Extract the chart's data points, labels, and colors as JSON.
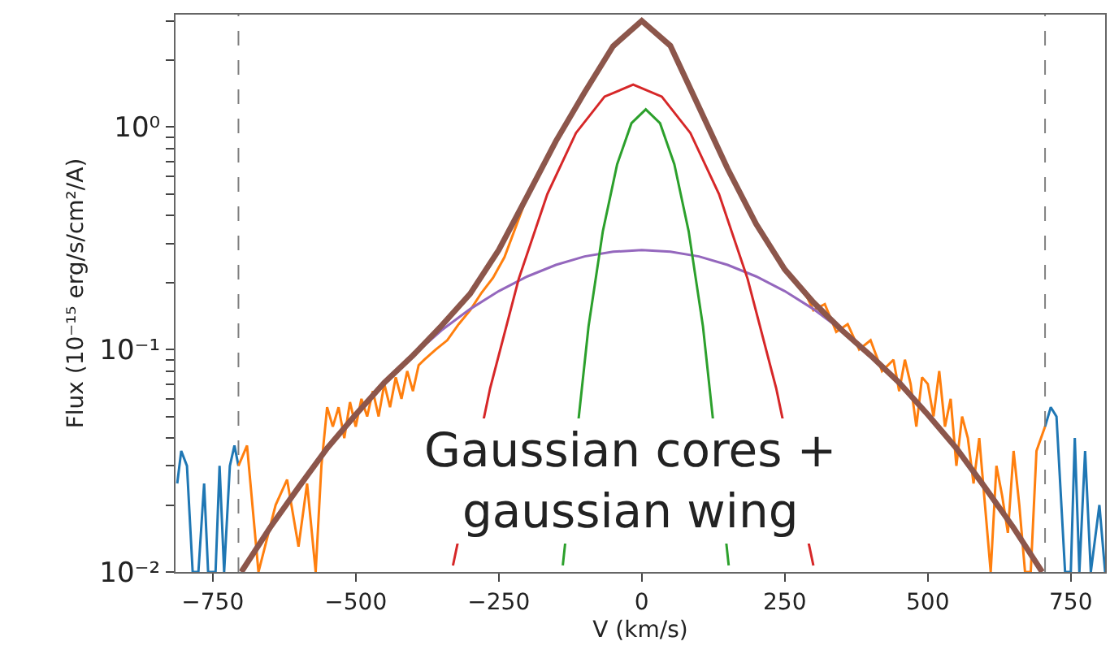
{
  "chart_data": {
    "type": "line",
    "xlabel": "V (km/s)",
    "ylabel": "Flux (10⁻¹⁵ erg/s/cm²/A)",
    "log": "y",
    "grid": false,
    "marker": "none",
    "line_style": "solid",
    "xlim": [
      -815,
      810
    ],
    "ylim": [
      0.01,
      3.2
    ],
    "xticks": [
      {
        "value": -750,
        "label": "−750"
      },
      {
        "value": -500,
        "label": "−500"
      },
      {
        "value": -250,
        "label": "−250"
      },
      0,
      250,
      500,
      750
    ],
    "yticks": [
      {
        "value": 0.01,
        "label": "10⁻²"
      },
      {
        "value": 0.02,
        "label": null
      },
      {
        "value": 0.03,
        "label": null
      },
      {
        "value": 0.04,
        "label": null
      },
      {
        "value": 0.05,
        "label": null
      },
      {
        "value": 0.06,
        "label": null
      },
      {
        "value": 0.07,
        "label": null
      },
      {
        "value": 0.08,
        "label": null
      },
      {
        "value": 0.09,
        "label": null
      },
      {
        "value": 0.1,
        "label": "10⁻¹"
      },
      {
        "value": 0.2,
        "label": null
      },
      {
        "value": 0.3,
        "label": null
      },
      {
        "value": 0.4,
        "label": null
      },
      {
        "value": 0.5,
        "label": null
      },
      {
        "value": 0.6,
        "label": null
      },
      {
        "value": 0.7,
        "label": null
      },
      {
        "value": 0.8,
        "label": null
      },
      {
        "value": 0.9,
        "label": null
      },
      {
        "value": 1,
        "label": "10⁰"
      },
      {
        "value": 2,
        "label": null
      },
      {
        "value": 3,
        "label": null
      }
    ],
    "ref_lines": [
      {
        "axis": "x",
        "value": -705,
        "color": "#808080",
        "line_style": "dashed"
      },
      {
        "axis": "x",
        "value": 705,
        "color": "#808080",
        "line_style": "dashed"
      }
    ],
    "annotations": [
      "Gaussian cores +\ngaussian wing"
    ],
    "series": [
      {
        "color": "#1f77b4",
        "x": [
          -812,
          -805,
          -795,
          -785,
          -775,
          -765,
          -758,
          -745,
          -738,
          -730,
          -720,
          -712,
          -705
        ],
        "values": [
          0.025,
          0.035,
          0.03,
          0.01,
          0.01,
          0.025,
          0.01,
          0.01,
          0.03,
          0.01,
          0.03,
          0.037,
          0.03
        ]
      },
      {
        "color": "#1f77b4",
        "x": [
          705,
          715,
          725,
          740,
          750,
          757,
          765,
          775,
          785,
          800,
          810
        ],
        "values": [
          0.045,
          0.055,
          0.05,
          0.01,
          0.01,
          0.04,
          0.01,
          0.035,
          0.01,
          0.02,
          0.01
        ]
      },
      {
        "color": "#ff7f0e",
        "x": [
          -705,
          -690,
          -670,
          -640,
          -620,
          -600,
          -585,
          -570,
          -560,
          -550,
          -540,
          -530,
          -520,
          -510,
          -500,
          -490,
          -480,
          -470,
          -460,
          -450,
          -440,
          -430,
          -420,
          -410,
          -400,
          -390,
          -380,
          -360,
          -340,
          -320,
          -300,
          -280,
          -260,
          -240,
          -200,
          -150,
          -100,
          -50,
          0,
          50,
          100,
          150,
          200,
          250,
          270,
          290,
          300,
          320,
          340,
          360,
          380,
          400,
          420,
          440,
          450,
          460,
          470,
          480,
          490,
          500,
          510,
          520,
          530,
          540,
          550,
          560,
          570,
          580,
          590,
          600,
          610,
          620,
          630,
          640,
          650,
          660,
          670,
          680,
          690,
          705
        ],
        "values": [
          0.03,
          0.037,
          0.01,
          0.02,
          0.026,
          0.013,
          0.025,
          0.01,
          0.03,
          0.055,
          0.045,
          0.055,
          0.04,
          0.058,
          0.045,
          0.06,
          0.05,
          0.065,
          0.05,
          0.07,
          0.055,
          0.075,
          0.06,
          0.08,
          0.065,
          0.085,
          0.09,
          0.1,
          0.11,
          0.13,
          0.15,
          0.18,
          0.21,
          0.26,
          0.49,
          0.87,
          1.43,
          2.3,
          2.95,
          2.3,
          1.23,
          0.65,
          0.37,
          0.23,
          0.2,
          0.17,
          0.15,
          0.16,
          0.12,
          0.13,
          0.1,
          0.11,
          0.08,
          0.09,
          0.065,
          0.09,
          0.07,
          0.045,
          0.075,
          0.07,
          0.05,
          0.08,
          0.045,
          0.06,
          0.03,
          0.05,
          0.04,
          0.025,
          0.04,
          0.02,
          0.01,
          0.03,
          0.022,
          0.015,
          0.035,
          0.02,
          0.01,
          0.01,
          0.035,
          0.045
        ]
      },
      {
        "color": "#9467bd",
        "x": [
          -450,
          -400,
          -350,
          -300,
          -250,
          -200,
          -150,
          -100,
          -50,
          0,
          50,
          100,
          150,
          200,
          250,
          300,
          350,
          400
        ],
        "values": [
          0.071,
          0.094,
          0.122,
          0.152,
          0.183,
          0.213,
          0.24,
          0.262,
          0.275,
          0.28,
          0.275,
          0.262,
          0.24,
          0.213,
          0.183,
          0.152,
          0.122,
          0.094
        ]
      },
      {
        "color": "#d62728",
        "x": [
          -330,
          -265,
          -215,
          -165,
          -115,
          -65,
          -15,
          35,
          85,
          135,
          185,
          235,
          300
        ],
        "values": [
          0.0107,
          0.067,
          0.208,
          0.5,
          0.94,
          1.37,
          1.55,
          1.37,
          0.94,
          0.5,
          0.208,
          0.067,
          0.0107
        ]
      },
      {
        "color": "#2ca02c",
        "x": [
          -138,
          -93,
          -68,
          -43,
          -18,
          7,
          32,
          57,
          82,
          107,
          152
        ],
        "values": [
          0.0107,
          0.127,
          0.34,
          0.68,
          1.04,
          1.2,
          1.04,
          0.68,
          0.34,
          0.127,
          0.0107
        ]
      },
      {
        "color": "#8c564b",
        "x": [
          -700,
          -650,
          -600,
          -550,
          -500,
          -450,
          -400,
          -350,
          -300,
          -250,
          -200,
          -150,
          -100,
          -50,
          0,
          50,
          100,
          150,
          200,
          250,
          300,
          350,
          400,
          450,
          500,
          550,
          600,
          650,
          700
        ],
        "values": [
          0.01,
          0.0158,
          0.024,
          0.036,
          0.051,
          0.071,
          0.094,
          0.128,
          0.178,
          0.28,
          0.49,
          0.865,
          1.43,
          2.31,
          3.0,
          2.32,
          1.23,
          0.65,
          0.366,
          0.229,
          0.163,
          0.122,
          0.094,
          0.071,
          0.051,
          0.036,
          0.024,
          0.0158,
          0.01
        ]
      }
    ]
  }
}
